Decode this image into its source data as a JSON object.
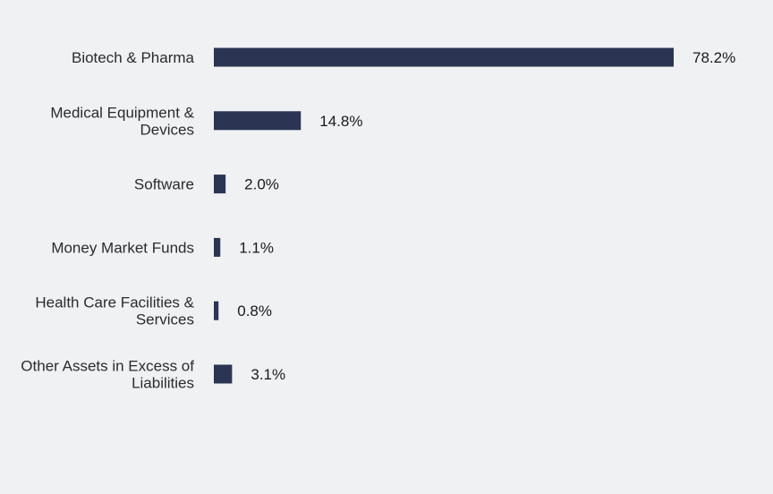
{
  "chart_data": {
    "type": "bar",
    "orientation": "horizontal",
    "categories": [
      [
        "Biotech & Pharma"
      ],
      [
        "Medical Equipment &",
        "Devices"
      ],
      [
        "Software"
      ],
      [
        "Money Market Funds"
      ],
      [
        "Health Care Facilities &",
        "Services"
      ],
      [
        "Other Assets in Excess of",
        "Liabilities"
      ]
    ],
    "values": [
      78.2,
      14.8,
      2.0,
      1.1,
      0.8,
      3.1
    ],
    "value_labels": [
      "78.2%",
      "14.8%",
      "2.0%",
      "1.1%",
      "0.8%",
      "3.1%"
    ],
    "xlim": [
      0,
      78.2
    ],
    "grid": false,
    "bar_color": "#2b3553",
    "background": "#f0f1f3"
  }
}
